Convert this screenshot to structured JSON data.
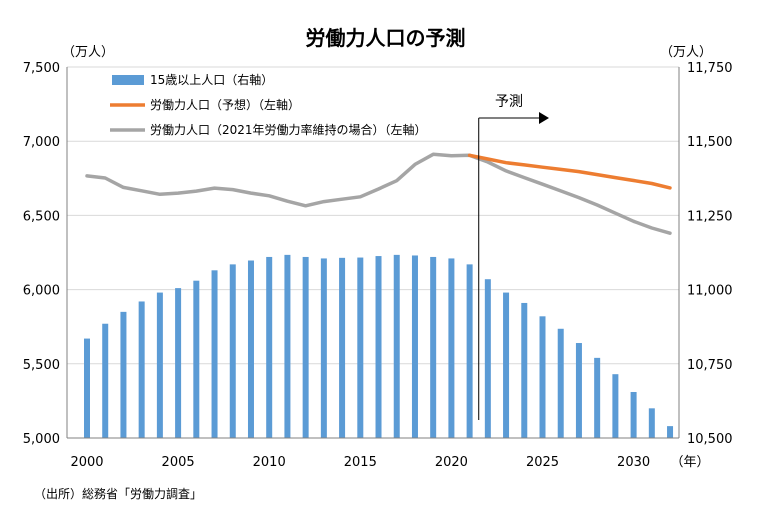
{
  "chart_data": {
    "type": "bar+line",
    "title": "労働力人口の予測",
    "y_left_unit": "（万人）",
    "y_right_unit": "（万人）",
    "x_unit": "（年）",
    "ylim_left": [
      5000,
      7500
    ],
    "ylim_right": [
      10500,
      11750
    ],
    "yticks_left": [
      "5,000",
      "5,500",
      "6,000",
      "6,500",
      "7,000",
      "7,500"
    ],
    "yticks_right": [
      "10,500",
      "10,750",
      "11,000",
      "11,250",
      "11,500",
      "11,750"
    ],
    "xticks": [
      "2000",
      "2005",
      "2010",
      "2015",
      "2020",
      "2025",
      "2030"
    ],
    "grid": true,
    "years": [
      2000,
      2001,
      2002,
      2003,
      2004,
      2005,
      2006,
      2007,
      2008,
      2009,
      2010,
      2011,
      2012,
      2013,
      2014,
      2015,
      2016,
      2017,
      2018,
      2019,
      2020,
      2021,
      2022,
      2023,
      2024,
      2025,
      2026,
      2027,
      2028,
      2029,
      2030,
      2031,
      2032
    ],
    "series": [
      {
        "name": "15歳以上人口（右軸）",
        "type": "bar",
        "axis": "right",
        "color": "#5b9bd5",
        "values": [
          10835,
          10885,
          10925,
          10960,
          10990,
          11005,
          11030,
          11065,
          11085,
          11098,
          11110,
          11117,
          11110,
          11105,
          11107,
          11108,
          11113,
          11117,
          11115,
          11110,
          11105,
          11085,
          11035,
          10990,
          10955,
          10910,
          10868,
          10820,
          10770,
          10715,
          10655,
          10600,
          10540
        ]
      },
      {
        "name": "労働力人口（予想）（左軸）",
        "type": "line",
        "axis": "left",
        "color": "#ed7d31",
        "x": [
          2021,
          2022,
          2023,
          2024,
          2025,
          2026,
          2027,
          2028,
          2029,
          2030,
          2031,
          2032
        ],
        "values": [
          6905,
          6880,
          6855,
          6840,
          6825,
          6810,
          6795,
          6775,
          6755,
          6735,
          6715,
          6685
        ]
      },
      {
        "name": "労働力人口（2021年労働力率維持の場合）（左軸）",
        "type": "line",
        "axis": "left",
        "color": "#a5a5a5",
        "values": [
          6766,
          6752,
          6689,
          6666,
          6642,
          6650,
          6664,
          6684,
          6674,
          6650,
          6632,
          6596,
          6565,
          6593,
          6609,
          6625,
          6678,
          6734,
          6844,
          6912,
          6902,
          6905,
          6860,
          6800,
          6755,
          6710,
          6665,
          6620,
          6570,
          6515,
          6460,
          6415,
          6380
        ]
      }
    ],
    "forecast": {
      "label": "予測",
      "start_year": 2021.5
    }
  },
  "source_note": "（出所）総務省「労働力調査」"
}
